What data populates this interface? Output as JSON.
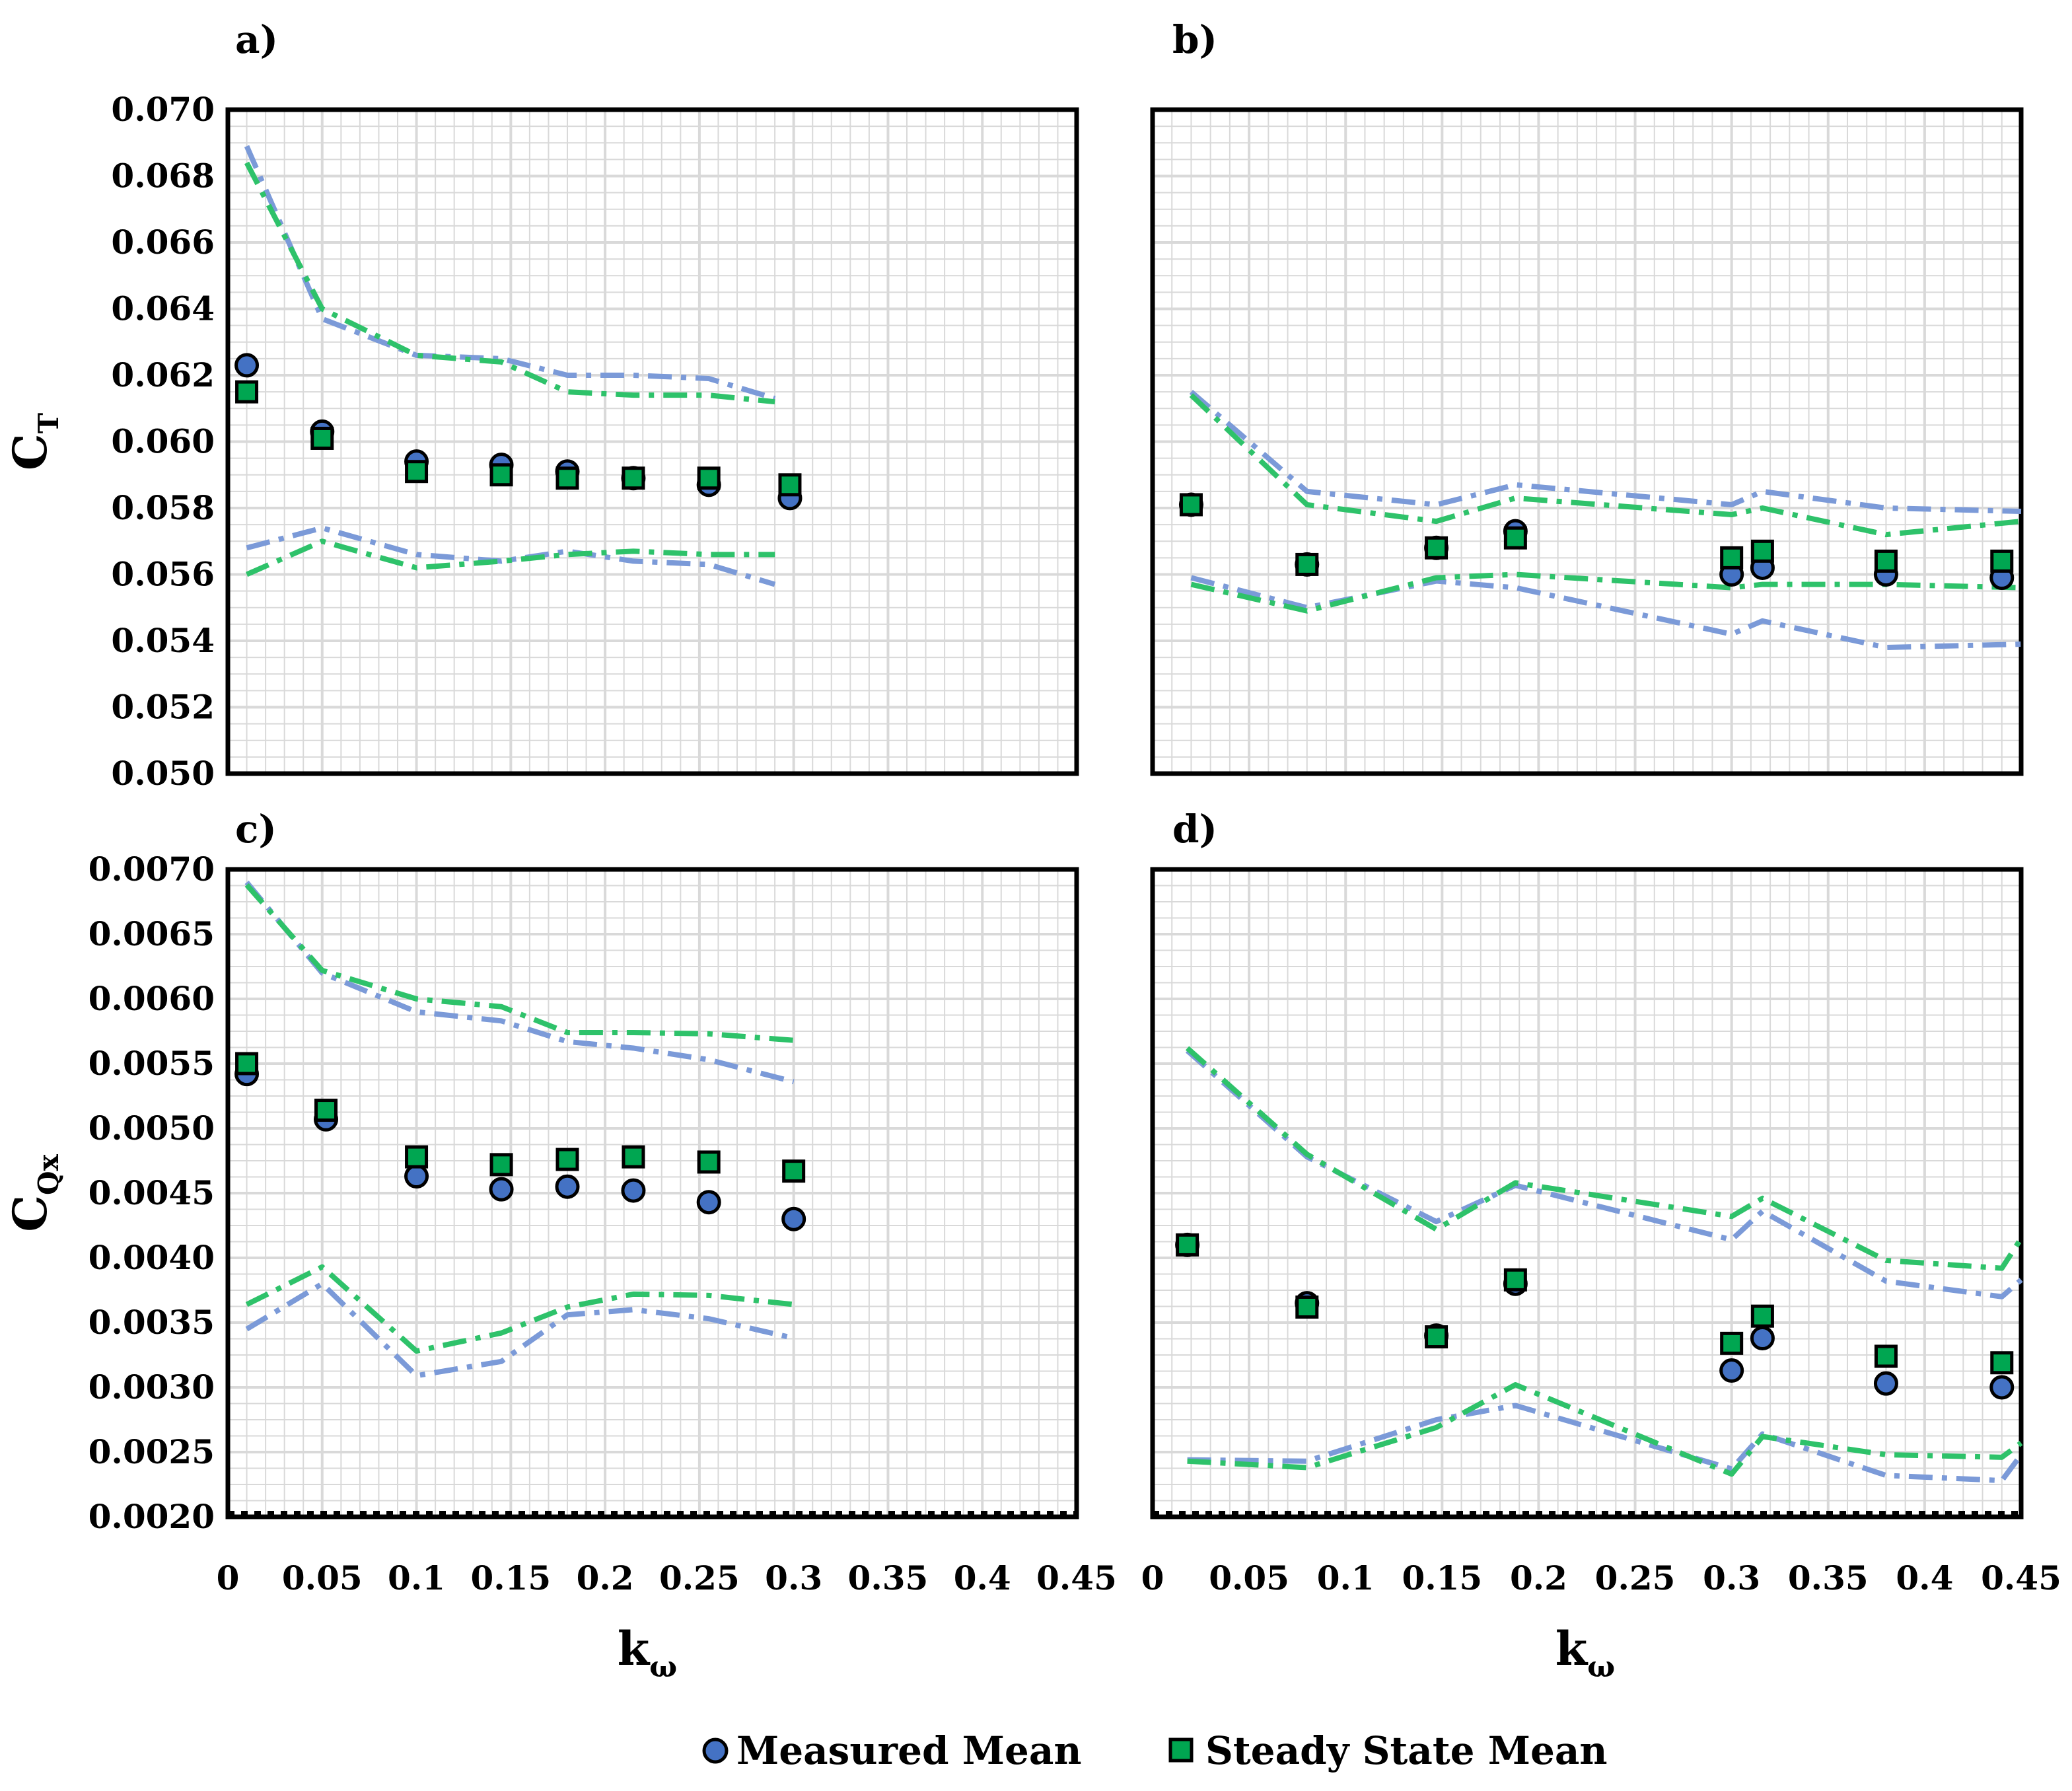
{
  "colors": {
    "measured": "#4472c4",
    "steady": "#00a651",
    "band_blue": "#7b9ad8",
    "band_green": "#2ec26a",
    "grid": "#d9d9d9",
    "frame": "#000000"
  },
  "legend": {
    "measured_label": "Measured Mean",
    "steady_label": "Steady State Mean",
    "measured_icon": "circle-marker",
    "steady_icon": "square-marker"
  },
  "x_title": {
    "main": "k",
    "sub": "ω"
  },
  "chart_data": [
    {
      "id": "a",
      "panel_label": "a)",
      "type": "scatter",
      "y_title": {
        "main": "C",
        "sub": "T"
      },
      "xlim": [
        0,
        0.45
      ],
      "ylim": [
        0.05,
        0.07
      ],
      "x_ticks": [],
      "show_x_labels": false,
      "y_ticks": [
        "0.050",
        "0.052",
        "0.054",
        "0.056",
        "0.058",
        "0.060",
        "0.062",
        "0.064",
        "0.066",
        "0.068",
        "0.070"
      ],
      "show_y_labels": true,
      "series": [
        {
          "name": "Measured Mean",
          "marker": "circle",
          "x": [
            0.01,
            0.05,
            0.1,
            0.145,
            0.18,
            0.215,
            0.255,
            0.298
          ],
          "y": [
            0.0623,
            0.0603,
            0.0594,
            0.0593,
            0.0591,
            0.0589,
            0.0587,
            0.0583
          ]
        },
        {
          "name": "Steady State Mean",
          "marker": "square",
          "x": [
            0.01,
            0.05,
            0.1,
            0.145,
            0.18,
            0.215,
            0.255,
            0.298
          ],
          "y": [
            0.0615,
            0.0601,
            0.0591,
            0.059,
            0.0589,
            0.0589,
            0.0589,
            0.0587
          ]
        }
      ],
      "bands": [
        {
          "color": "blue",
          "x": [
            0.01,
            0.05,
            0.1,
            0.145,
            0.18,
            0.215,
            0.255,
            0.29
          ],
          "y": [
            0.0689,
            0.0637,
            0.0626,
            0.0625,
            0.062,
            0.062,
            0.0619,
            0.0613
          ]
        },
        {
          "color": "green",
          "x": [
            0.01,
            0.05,
            0.1,
            0.145,
            0.18,
            0.215,
            0.255,
            0.29
          ],
          "y": [
            0.0684,
            0.064,
            0.0626,
            0.0624,
            0.0615,
            0.0614,
            0.0614,
            0.0612
          ]
        },
        {
          "color": "blue",
          "x": [
            0.01,
            0.05,
            0.1,
            0.145,
            0.18,
            0.215,
            0.255,
            0.29
          ],
          "y": [
            0.0568,
            0.0574,
            0.0566,
            0.0564,
            0.0567,
            0.0564,
            0.0563,
            0.0557
          ]
        },
        {
          "color": "green",
          "x": [
            0.01,
            0.05,
            0.1,
            0.145,
            0.18,
            0.215,
            0.255,
            0.29
          ],
          "y": [
            0.056,
            0.057,
            0.0562,
            0.0564,
            0.0566,
            0.0567,
            0.0566,
            0.0566
          ]
        }
      ]
    },
    {
      "id": "b",
      "panel_label": "b)",
      "type": "scatter",
      "y_title": null,
      "xlim": [
        0,
        0.45
      ],
      "ylim": [
        0.05,
        0.07
      ],
      "show_x_labels": false,
      "show_y_labels": false,
      "y_ticks": [],
      "series": [
        {
          "name": "Measured Mean",
          "marker": "circle",
          "x": [
            0.02,
            0.08,
            0.147,
            0.188,
            0.3,
            0.316,
            0.38,
            0.44
          ],
          "y": [
            0.0581,
            0.0563,
            0.0568,
            0.0573,
            0.056,
            0.0562,
            0.056,
            0.0559
          ]
        },
        {
          "name": "Steady State Mean",
          "marker": "square",
          "x": [
            0.02,
            0.08,
            0.147,
            0.188,
            0.3,
            0.316,
            0.38,
            0.44
          ],
          "y": [
            0.0581,
            0.0563,
            0.0568,
            0.0571,
            0.0565,
            0.0567,
            0.0564,
            0.0564
          ]
        }
      ],
      "bands": [
        {
          "color": "blue",
          "x": [
            0.02,
            0.08,
            0.147,
            0.188,
            0.3,
            0.316,
            0.38,
            0.45
          ],
          "y": [
            0.0615,
            0.0585,
            0.0581,
            0.0587,
            0.0581,
            0.0585,
            0.058,
            0.0579
          ]
        },
        {
          "color": "green",
          "x": [
            0.02,
            0.08,
            0.147,
            0.188,
            0.3,
            0.316,
            0.38,
            0.45
          ],
          "y": [
            0.0614,
            0.0581,
            0.0576,
            0.0583,
            0.0578,
            0.058,
            0.0572,
            0.0576
          ]
        },
        {
          "color": "blue",
          "x": [
            0.02,
            0.08,
            0.147,
            0.188,
            0.3,
            0.316,
            0.38,
            0.45
          ],
          "y": [
            0.0559,
            0.055,
            0.0558,
            0.0556,
            0.0542,
            0.0546,
            0.0538,
            0.0539
          ]
        },
        {
          "color": "green",
          "x": [
            0.02,
            0.08,
            0.147,
            0.188,
            0.3,
            0.316,
            0.38,
            0.45
          ],
          "y": [
            0.0557,
            0.0549,
            0.0559,
            0.056,
            0.0556,
            0.0557,
            0.0557,
            0.0556
          ]
        }
      ]
    },
    {
      "id": "c",
      "panel_label": "c)",
      "type": "scatter",
      "y_title": {
        "main": "C",
        "sub": "Qx"
      },
      "xlim": [
        0,
        0.45
      ],
      "ylim": [
        0.002,
        0.007
      ],
      "show_x_labels": true,
      "show_y_labels": true,
      "x_ticks": [
        "0",
        "0.05",
        "0.1",
        "0.15",
        "0.2",
        "0.25",
        "0.3",
        "0.35",
        "0.4",
        "0.45"
      ],
      "y_ticks": [
        "0.0020",
        "0.0025",
        "0.0030",
        "0.0035",
        "0.0040",
        "0.0045",
        "0.0050",
        "0.0055",
        "0.0060",
        "0.0065",
        "0.0070"
      ],
      "series": [
        {
          "name": "Measured Mean",
          "marker": "circle",
          "x": [
            0.01,
            0.052,
            0.1,
            0.145,
            0.18,
            0.215,
            0.255,
            0.3
          ],
          "y": [
            0.00542,
            0.00507,
            0.00463,
            0.00453,
            0.00455,
            0.00452,
            0.00443,
            0.0043
          ]
        },
        {
          "name": "Steady State Mean",
          "marker": "square",
          "x": [
            0.01,
            0.052,
            0.1,
            0.145,
            0.18,
            0.215,
            0.255,
            0.3
          ],
          "y": [
            0.0055,
            0.00514,
            0.00478,
            0.00472,
            0.00476,
            0.00478,
            0.00474,
            0.00467
          ]
        }
      ],
      "bands": [
        {
          "color": "blue",
          "x": [
            0.01,
            0.05,
            0.1,
            0.145,
            0.18,
            0.215,
            0.255,
            0.3
          ],
          "y": [
            0.0069,
            0.0062,
            0.0059,
            0.00583,
            0.00567,
            0.00562,
            0.00553,
            0.00536
          ]
        },
        {
          "color": "green",
          "x": [
            0.01,
            0.05,
            0.1,
            0.145,
            0.18,
            0.215,
            0.255,
            0.3
          ],
          "y": [
            0.00688,
            0.00622,
            0.006,
            0.00594,
            0.00574,
            0.00574,
            0.00573,
            0.00568
          ]
        },
        {
          "color": "blue",
          "x": [
            0.01,
            0.05,
            0.1,
            0.145,
            0.18,
            0.215,
            0.255,
            0.3
          ],
          "y": [
            0.00345,
            0.0038,
            0.00309,
            0.0032,
            0.00356,
            0.0036,
            0.00353,
            0.00338
          ]
        },
        {
          "color": "green",
          "x": [
            0.01,
            0.05,
            0.1,
            0.145,
            0.18,
            0.215,
            0.255,
            0.3
          ],
          "y": [
            0.00364,
            0.00393,
            0.00328,
            0.00342,
            0.00362,
            0.00372,
            0.00371,
            0.00364
          ]
        }
      ]
    },
    {
      "id": "d",
      "panel_label": "d)",
      "type": "scatter",
      "y_title": null,
      "xlim": [
        0,
        0.45
      ],
      "ylim": [
        0.002,
        0.007
      ],
      "show_x_labels": true,
      "show_y_labels": false,
      "x_ticks": [
        "0",
        "0.05",
        "0.1",
        "0.15",
        "0.2",
        "0.25",
        "0.3",
        "0.35",
        "0.4",
        "0.45"
      ],
      "y_ticks": [],
      "series": [
        {
          "name": "Measured Mean",
          "marker": "circle",
          "x": [
            0.018,
            0.08,
            0.147,
            0.188,
            0.3,
            0.316,
            0.38,
            0.44
          ],
          "y": [
            0.0041,
            0.00365,
            0.0034,
            0.0038,
            0.00313,
            0.00338,
            0.00303,
            0.003
          ]
        },
        {
          "name": "Steady State Mean",
          "marker": "square",
          "x": [
            0.018,
            0.08,
            0.147,
            0.188,
            0.3,
            0.316,
            0.38,
            0.44
          ],
          "y": [
            0.0041,
            0.00362,
            0.00339,
            0.00383,
            0.00334,
            0.00355,
            0.00324,
            0.00319
          ]
        }
      ],
      "bands": [
        {
          "color": "blue",
          "x": [
            0.018,
            0.08,
            0.147,
            0.188,
            0.3,
            0.316,
            0.38,
            0.44,
            0.45
          ],
          "y": [
            0.0056,
            0.00478,
            0.00428,
            0.00456,
            0.00414,
            0.00436,
            0.00382,
            0.0037,
            0.00383
          ]
        },
        {
          "color": "green",
          "x": [
            0.018,
            0.08,
            0.147,
            0.188,
            0.3,
            0.316,
            0.38,
            0.44,
            0.45
          ],
          "y": [
            0.00562,
            0.0048,
            0.00422,
            0.00458,
            0.00432,
            0.00446,
            0.00398,
            0.00392,
            0.00415
          ]
        },
        {
          "color": "blue",
          "x": [
            0.018,
            0.08,
            0.147,
            0.188,
            0.3,
            0.316,
            0.38,
            0.44,
            0.45
          ],
          "y": [
            0.00244,
            0.00243,
            0.00275,
            0.00286,
            0.00237,
            0.00264,
            0.00232,
            0.00228,
            0.00248
          ]
        },
        {
          "color": "green",
          "x": [
            0.018,
            0.08,
            0.147,
            0.188,
            0.3,
            0.316,
            0.38,
            0.44,
            0.45
          ],
          "y": [
            0.00243,
            0.00238,
            0.00269,
            0.00302,
            0.00233,
            0.00262,
            0.00248,
            0.00246,
            0.00257
          ]
        }
      ]
    }
  ]
}
